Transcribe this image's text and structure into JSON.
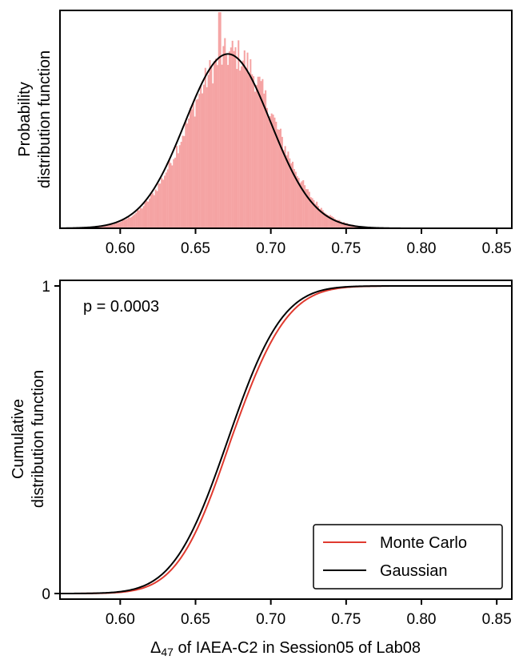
{
  "chart_data": [
    {
      "type": "bar",
      "panel": "top",
      "ylabel_lines": [
        "Probability",
        "distribution function"
      ],
      "xlim": [
        0.56,
        0.86
      ],
      "xticks": [
        "0.60",
        "0.65",
        "0.70",
        "0.75",
        "0.80",
        "0.85"
      ],
      "xtick_values": [
        0.6,
        0.65,
        0.7,
        0.75,
        0.8,
        0.85
      ],
      "histogram": {
        "color": "#f5a3a3",
        "bin_width": 0.001,
        "range": [
          0.575,
          0.8
        ],
        "distribution_mean": 0.672,
        "distribution_sd": 0.0285,
        "noise_amplitude": 0.1,
        "peak_height": 1.0
      },
      "gaussian": {
        "mean": 0.6715,
        "sd": 0.0285,
        "color": "#000000"
      },
      "ylim": [
        0,
        1.25
      ]
    },
    {
      "type": "line",
      "panel": "bottom",
      "ylabel_lines": [
        "Cumulative",
        "distribution function"
      ],
      "xlabel_prefix": "Δ",
      "xlabel_subscript": "47",
      "xlabel_suffix": " of IAEA-C2 in Session05 of Lab08",
      "annotation": "p = 0.0003",
      "xlim": [
        0.56,
        0.86
      ],
      "ylim": [
        0,
        1
      ],
      "xticks": [
        "0.60",
        "0.65",
        "0.70",
        "0.75",
        "0.80",
        "0.85"
      ],
      "xtick_values": [
        0.6,
        0.65,
        0.7,
        0.75,
        0.8,
        0.85
      ],
      "yticks": [
        "0",
        "1"
      ],
      "ytick_values": [
        0,
        1
      ],
      "legend_position": "lower-right",
      "series": [
        {
          "name": "Monte Carlo",
          "color": "#e03a2f",
          "mean": 0.6735,
          "sd": 0.0278,
          "skew_shift": 0.003
        },
        {
          "name": "Gaussian",
          "color": "#000000",
          "mean": 0.6715,
          "sd": 0.0285
        }
      ]
    }
  ]
}
